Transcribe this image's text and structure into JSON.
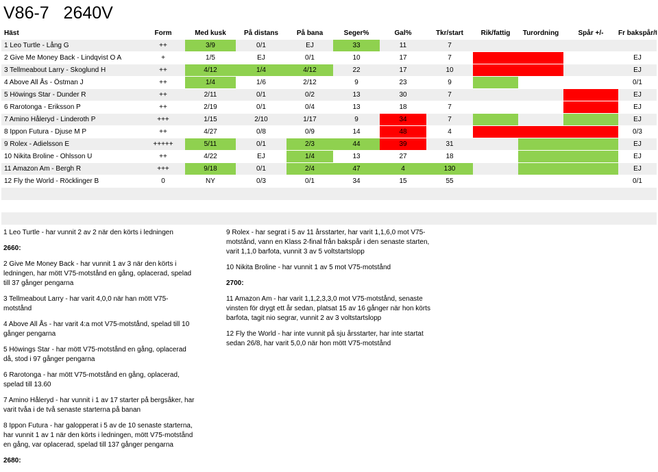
{
  "title": "V86-7   2640V",
  "headers": [
    "Häst",
    "Form",
    "Med kusk",
    "På distans",
    "På bana",
    "Seger%",
    "Gal%",
    "Tkr/start",
    "Rik/fattig",
    "Turordning",
    "Spår +/-",
    "Fr bakspår/tillägg"
  ],
  "rows": [
    [
      "1 Leo Turtle - Lång G",
      "++",
      "3/9",
      "0/1",
      "EJ",
      "33",
      "11",
      "7",
      "",
      "",
      "",
      ""
    ],
    [
      "2 Give Me Money Back - Lindqvist O A",
      "+",
      "1/5",
      "EJ",
      "0/1",
      "10",
      "17",
      "7",
      "",
      "",
      "",
      "EJ"
    ],
    [
      "3 Tellmeabout Larry - Skoglund H",
      "++",
      "4/12",
      "1/4",
      "4/12",
      "22",
      "17",
      "10",
      "",
      "",
      "",
      "EJ"
    ],
    [
      "4 Above All Ås - Östman J",
      "++",
      "1/4",
      "1/6",
      "2/12",
      "9",
      "23",
      "9",
      "",
      "",
      "",
      "0/1"
    ],
    [
      "5 Höwings Star - Dunder R",
      "++",
      "2/11",
      "0/1",
      "0/2",
      "13",
      "30",
      "7",
      "",
      "",
      "",
      "EJ"
    ],
    [
      "6 Rarotonga - Eriksson P",
      "++",
      "2/19",
      "0/1",
      "0/4",
      "13",
      "18",
      "7",
      "",
      "",
      "",
      "EJ"
    ],
    [
      "7 Amino Håleryd - Linderoth P",
      "+++",
      "1/15",
      "2/10",
      "1/17",
      "9",
      "34",
      "7",
      "",
      "",
      "",
      "EJ"
    ],
    [
      "8 Ippon Futura - Djuse M P",
      "++",
      "4/27",
      "0/8",
      "0/9",
      "14",
      "48",
      "4",
      "",
      "",
      "",
      "0/3"
    ],
    [
      "9 Rolex - Adielsson E",
      "+++++",
      "5/11",
      "0/1",
      "2/3",
      "44",
      "39",
      "31",
      "",
      "",
      "",
      "EJ"
    ],
    [
      "10 Nikita Broline - Ohlsson U",
      "++",
      "4/22",
      "EJ",
      "1/4",
      "13",
      "27",
      "18",
      "",
      "",
      "",
      "EJ"
    ],
    [
      "11 Amazon Am - Bergh R",
      "+++",
      "9/18",
      "0/1",
      "2/4",
      "47",
      "4",
      "130",
      "",
      "",
      "",
      "EJ"
    ],
    [
      "12 Fly the World - Röcklinger B",
      "0",
      "NY",
      "0/3",
      "0/1",
      "34",
      "15",
      "55",
      "",
      "",
      "",
      "0/1"
    ]
  ],
  "cell_colors": {
    "green": "#8fd14f",
    "red": "#ff0000",
    "stripe": "#eeeeee"
  },
  "notes_left": [
    "1 Leo Turtle - har vunnit 2 av 2 när den körts i ledningen",
    "2660:",
    "2 Give Me Money Back - har vunnit 1 av 3 när den körts i ledningen, har mött V75-motstånd en gång, oplacerad, spelad till 37 gånger pengarna",
    "3 Tellmeabout Larry - har varit 4,0,0 när han mött V75-motstånd",
    "4 Above All Ås - har varit 4:a mot V75-motstånd, spelad till 10 gånger pengarna",
    "5 Höwings Star - har mött V75-motstånd en gång, oplacerad då, stod i 97 gånger pengarna",
    "6 Rarotonga - har mött V75-motstånd en gång, oplacerad, spelad till 13.60",
    "7 Amino Håleryd - har vunnit i 1 av 17 starter på bergsåker, har varit tvåa i de två senaste starterna på banan",
    "8 Ippon Futura - har galopperat i 5 av de 10 senaste starterna, har vunnit 1 av 1 när den körts i ledningen, mött V75-motstånd en gång, var oplacerad, spelad till 137 gånger pengarna",
    "2680:"
  ],
  "notes_right": [
    "9 Rolex - har segrat i 5 av 11 årsstarter, har varit 1,1,6,0 mot V75-motstånd, vann en Klass 2-final från bakspår i den senaste starten, varit 1,1,0 barfota, vunnit 3 av 5 voltstartslopp",
    "10 Nikita Broline - har vunnit 1 av 5 mot V75-motstånd",
    "2700:",
    "11 Amazon Am - har varit 1,1,2,3,3,0 mot V75-motstånd, senaste vinsten för drygt ett år sedan, platsat 15 av 16 gånger när hon körts barfota, tagit nio segrar, vunnit 2 av 3 voltstartslopp",
    "12 Fly the World - har inte vunnit på sju årsstarter, har inte startat sedan 26/8, har varit 5,0,0 när hon mött V75-motstånd"
  ]
}
